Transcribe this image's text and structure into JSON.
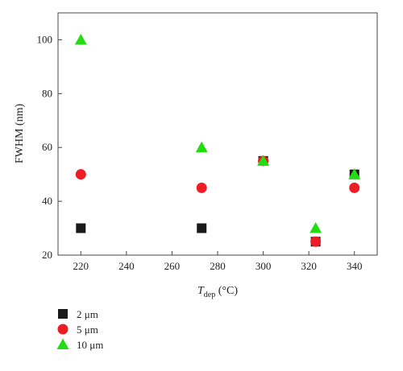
{
  "chart_data": {
    "type": "scatter",
    "title": "",
    "xlabel": {
      "main": "T",
      "sub": "dep",
      "unit": " (°C)"
    },
    "ylabel": "FWHM (nm)",
    "xlim": [
      210,
      350
    ],
    "ylim": [
      20,
      110
    ],
    "xticks": [
      220,
      240,
      260,
      280,
      300,
      320,
      340
    ],
    "yticks": [
      20,
      40,
      60,
      80,
      100
    ],
    "grid": false,
    "legend_position": "bottom-left, below plot",
    "series": [
      {
        "name": "2 μm",
        "marker": "square",
        "color": "#1a1a1a",
        "points": [
          [
            220,
            30
          ],
          [
            273,
            30
          ],
          [
            300,
            55
          ],
          [
            323,
            25
          ],
          [
            340,
            50
          ]
        ]
      },
      {
        "name": "5 μm",
        "marker": "circle",
        "color": "#ee1c25",
        "points": [
          [
            220,
            50
          ],
          [
            273,
            45
          ],
          [
            300,
            55
          ],
          [
            323,
            25
          ],
          [
            340,
            45
          ]
        ]
      },
      {
        "name": "10 μm",
        "marker": "triangle",
        "color": "#22dd11",
        "points": [
          [
            220,
            100
          ],
          [
            273,
            60
          ],
          [
            300,
            55
          ],
          [
            323,
            30
          ],
          [
            340,
            50
          ]
        ]
      }
    ]
  }
}
